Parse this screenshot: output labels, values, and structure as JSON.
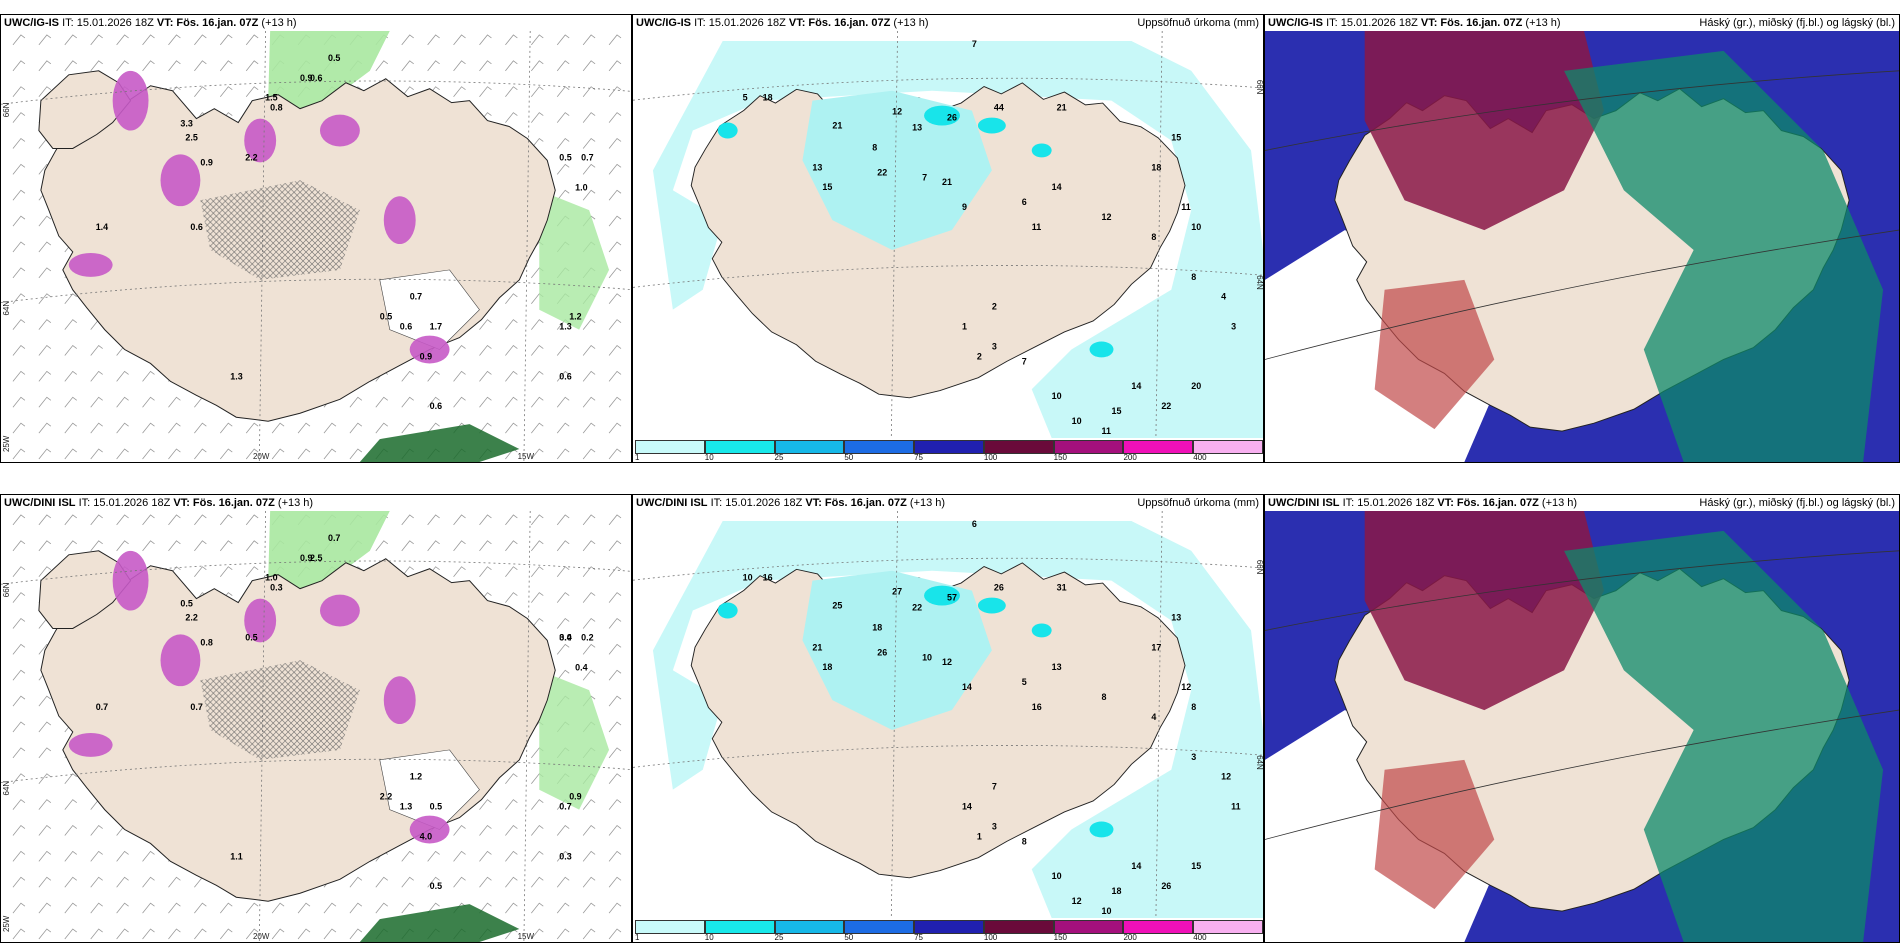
{
  "rows": [
    {
      "model": "UWC/IG-IS",
      "panels": [
        {
          "type": "ptype",
          "model": "UWC/IG-IS",
          "it": "IT: 15.01.2026 18Z",
          "vt": "VT: Fös. 16.jan. 07Z",
          "lead": "(+13 h)",
          "right_title": "",
          "axes": {
            "lat_top": "66N",
            "lat_mid": "64N",
            "lon_w25": "25W",
            "lon_w20": "20W",
            "lon_w15": "15W"
          },
          "labels": [
            "0.5",
            "0.7",
            "1.0",
            "0.6",
            "0.5",
            "0.6",
            "0.8",
            "3.3",
            "2.5",
            "0.9",
            "0.6",
            "0.7",
            "1.7",
            "0.6",
            "0.9",
            "1.5",
            "2.2",
            "1.4",
            "1.3",
            "0.5",
            "0.6",
            "0.9",
            "1.2",
            "1.3"
          ]
        },
        {
          "type": "precip",
          "model": "UWC/IG-IS",
          "it": "IT: 15.01.2026 18Z",
          "vt": "VT: Fös. 16.jan. 07Z",
          "lead": "(+13 h)",
          "right_title": "Uppsöfnuð úrkoma (mm)",
          "axes": {
            "lat_top": "66N",
            "lat_mid": "64N"
          },
          "labels": [
            "7",
            "5",
            "18",
            "21",
            "12",
            "13",
            "8",
            "26",
            "44",
            "21",
            "15",
            "13",
            "22",
            "21",
            "14",
            "18",
            "15",
            "11",
            "10",
            "7",
            "9",
            "6",
            "11",
            "12",
            "8",
            "8",
            "4",
            "3",
            "20",
            "22",
            "14",
            "15",
            "11",
            "10",
            "10",
            "7",
            "3",
            "2",
            "1",
            "2"
          ],
          "colorbar": [
            "1",
            "10",
            "25",
            "50",
            "75",
            "100",
            "150",
            "200",
            "400"
          ]
        },
        {
          "type": "cloud",
          "model": "UWC/IG-IS",
          "it": "IT: 15.01.2026 18Z",
          "vt": "VT: Fös. 16.jan. 07Z",
          "lead": "(+13 h)",
          "right_title": "Háský (gr.), miðský (fj.bl.) og lágský (bl.)"
        }
      ]
    },
    {
      "model": "UWC/DINI ISL",
      "panels": [
        {
          "type": "ptype",
          "model": "UWC/DINI ISL",
          "it": "IT: 15.01.2026 18Z",
          "vt": "VT: Fös. 16.jan. 07Z",
          "lead": "(+13 h)",
          "right_title": "",
          "axes": {
            "lat_top": "66N",
            "lat_mid": "64N",
            "lon_w25": "25W",
            "lon_w20": "20W",
            "lon_w15": "15W"
          },
          "labels": [
            "0.4",
            "0.2",
            "0.4",
            "0.5",
            "0.7",
            "2.5",
            "0.3",
            "0.5",
            "2.2",
            "0.8",
            "0.7",
            "1.2",
            "0.5",
            "0.3",
            "0.9",
            "1.0",
            "0.5",
            "0.7",
            "1.1",
            "2.2",
            "1.3",
            "4.0",
            "0.9",
            "0.7",
            "3.0"
          ]
        },
        {
          "type": "precip",
          "model": "UWC/DINI ISL",
          "it": "IT: 15.01.2026 18Z",
          "vt": "VT: Fös. 16.jan. 07Z",
          "lead": "(+13 h)",
          "right_title": "Uppsöfnuð úrkoma (mm)",
          "axes": {
            "lat_top": "66N",
            "lat_mid": "64N"
          },
          "labels": [
            "6",
            "10",
            "16",
            "25",
            "27",
            "22",
            "18",
            "57",
            "26",
            "31",
            "18",
            "21",
            "26",
            "12",
            "13",
            "17",
            "13",
            "12",
            "8",
            "10",
            "14",
            "5",
            "16",
            "8",
            "4",
            "3",
            "12",
            "11",
            "15",
            "26",
            "14",
            "18",
            "10",
            "12",
            "10",
            "8",
            "3",
            "1",
            "14",
            "7"
          ],
          "colorbar": [
            "1",
            "10",
            "25",
            "50",
            "75",
            "100",
            "150",
            "200",
            "400"
          ]
        },
        {
          "type": "cloud",
          "model": "UWC/DINI ISL",
          "it": "IT: 15.01.2026 18Z",
          "vt": "VT: Fös. 16.jan. 07Z",
          "lead": "(+13 h)",
          "right_title": "Háský (gr.), miðský (fj.bl.) og lágský (bl.)"
        }
      ]
    }
  ],
  "colors": {
    "land": "#efe2d5",
    "sea_precip": "#c8f8f8",
    "precip_light": "#aef2f2",
    "precip_mid": "#18e4ea",
    "snow_magenta": "#c65ac6",
    "rain_green": "#a8e8a0",
    "rain_dark": "#1a6b2c",
    "cloud_high": "#2b2fb0",
    "cloud_mid": "#8a1848",
    "cloud_low": "#0e8a6a",
    "colorbar": [
      "#c8fafa",
      "#18e8ea",
      "#16b8e8",
      "#1c6ce4",
      "#2020b0",
      "#6a0a3a",
      "#a4107c",
      "#f010b8",
      "#f8b0f0"
    ]
  }
}
